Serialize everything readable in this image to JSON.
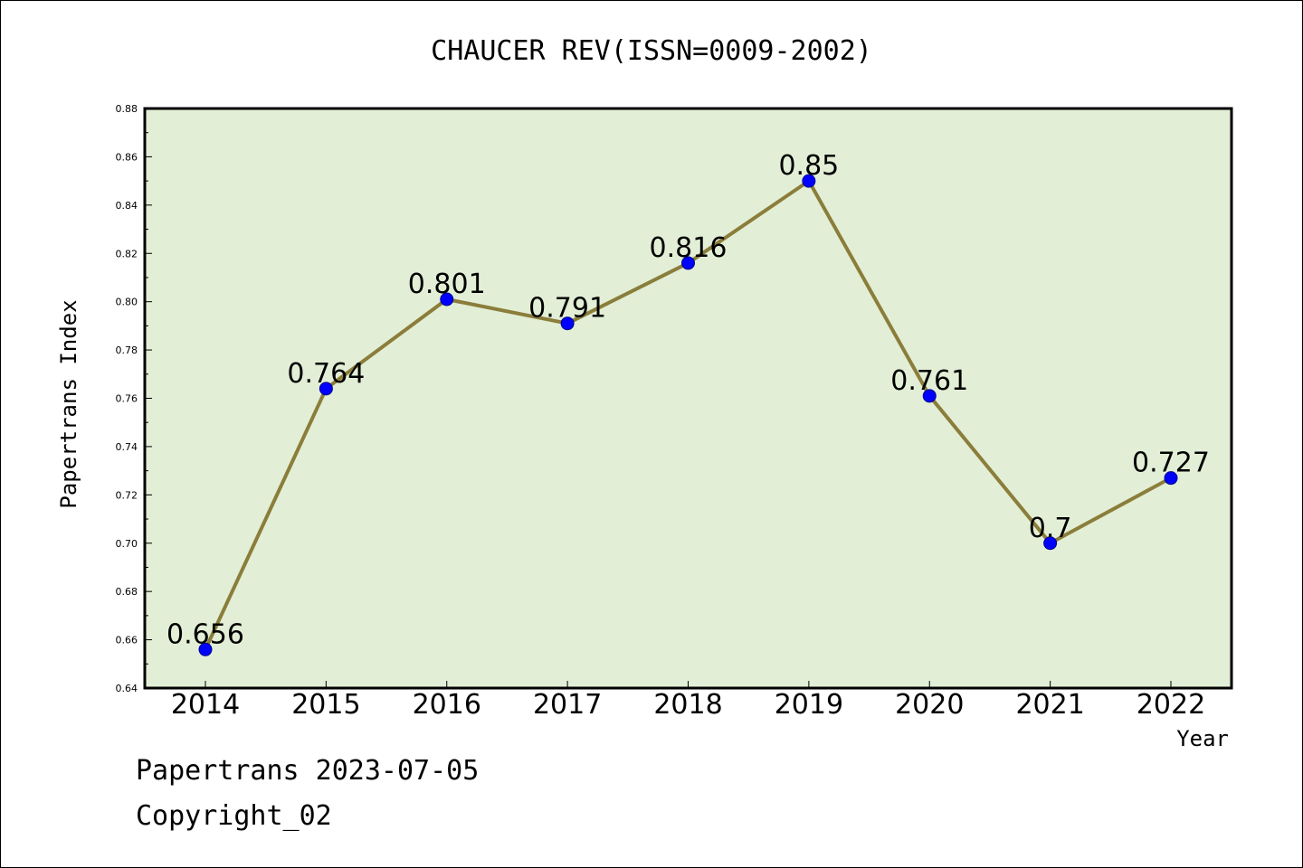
{
  "chart_data": {
    "type": "line",
    "title": "CHAUCER REV(ISSN=0009-2002)",
    "xlabel": "Year",
    "ylabel": "Papertrans Index",
    "categories": [
      "2014",
      "2015",
      "2016",
      "2017",
      "2018",
      "2019",
      "2020",
      "2021",
      "2022"
    ],
    "series": [
      {
        "values": [
          0.656,
          0.764,
          0.801,
          0.791,
          0.816,
          0.85,
          0.761,
          0.7,
          0.727
        ]
      }
    ],
    "data_labels": [
      "0.656",
      "0.764",
      "0.801",
      "0.791",
      "0.816",
      "0.85",
      "0.761",
      "0.7",
      "0.727"
    ],
    "ylim": [
      0.64,
      0.88
    ],
    "yticks": [
      "0.64",
      "0.66",
      "0.68",
      "0.70",
      "0.72",
      "0.74",
      "0.76",
      "0.78",
      "0.80",
      "0.82",
      "0.84",
      "0.86",
      "0.88"
    ],
    "grid": false,
    "colors": {
      "plot_bg": "#e2efd6",
      "line": "#8b7d3a",
      "marker": "#0000ff"
    }
  },
  "footer": {
    "line1": "Papertrans 2023-07-05",
    "line2": "Copyright_02"
  }
}
